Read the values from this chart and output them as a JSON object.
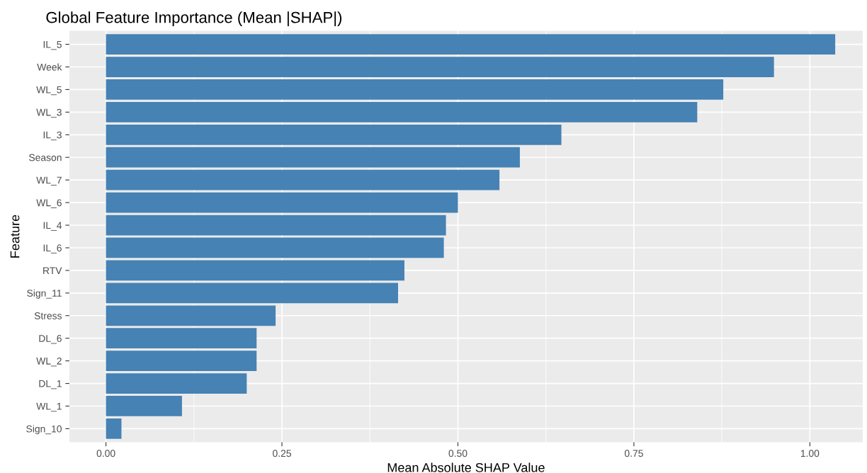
{
  "chart_data": {
    "type": "bar",
    "orientation": "horizontal",
    "title": "Global Feature Importance (Mean |SHAP|)",
    "xlabel": "Mean Absolute SHAP Value",
    "ylabel": "Feature",
    "categories": [
      "IL_5",
      "Week",
      "WL_5",
      "WL_3",
      "IL_3",
      "Season",
      "WL_7",
      "WL_6",
      "IL_4",
      "IL_6",
      "RTV",
      "Sign_11",
      "Stress",
      "DL_6",
      "WL_2",
      "DL_1",
      "WL_1",
      "Sign_10"
    ],
    "values": [
      1.036,
      0.949,
      0.877,
      0.84,
      0.647,
      0.588,
      0.559,
      0.5,
      0.483,
      0.48,
      0.424,
      0.415,
      0.241,
      0.214,
      0.214,
      0.2,
      0.108,
      0.022
    ],
    "color": "#4682b4",
    "xlim": [
      -0.052,
      1.075
    ],
    "xticks": [
      {
        "value": 0,
        "label": "0.00"
      },
      {
        "value": 0.25,
        "label": "0.25"
      },
      {
        "value": 0.5,
        "label": "0.50"
      },
      {
        "value": 0.75,
        "label": "0.75"
      },
      {
        "value": 1,
        "label": "1.00"
      }
    ],
    "grid": true
  }
}
